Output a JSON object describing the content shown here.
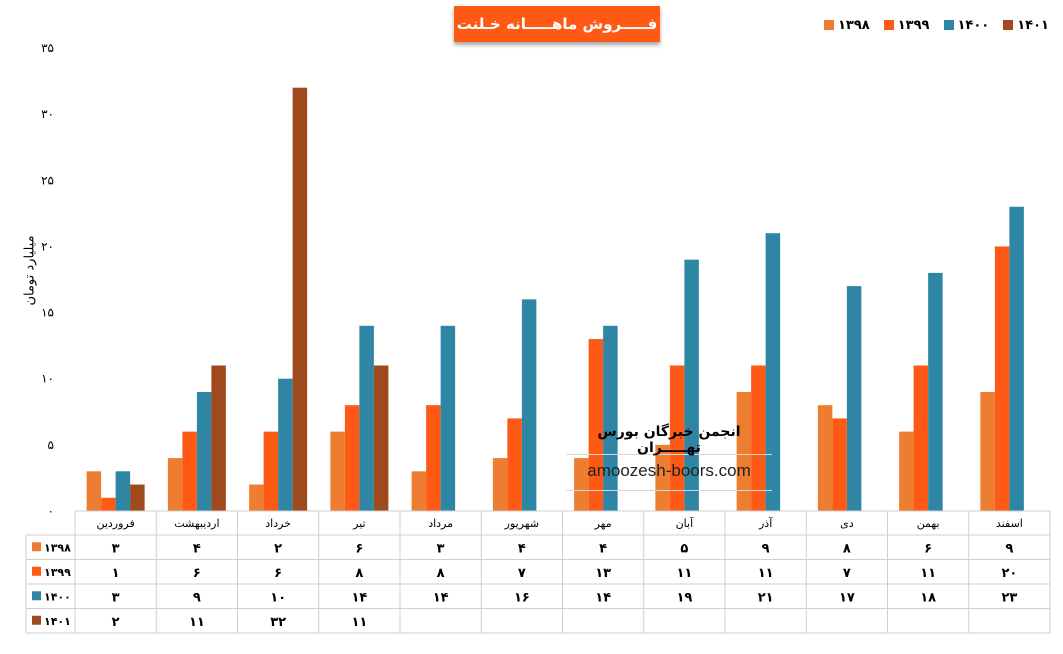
{
  "chart_data": {
    "type": "bar",
    "title": "فـــــروش ماهـــــانه خـلنت",
    "xlabel": "",
    "ylabel": "میلیارد تومان",
    "ylim": [
      0,
      35
    ],
    "yticks": [
      "۰",
      "۵",
      "۱۰",
      "۱۵",
      "۲۰",
      "۲۵",
      "۳۰",
      "۳۵"
    ],
    "ytick_values": [
      0,
      5,
      10,
      15,
      20,
      25,
      30,
      35
    ],
    "categories": [
      "فروردین",
      "اردیبهشت",
      "خرداد",
      "تیر",
      "مرداد",
      "شهریور",
      "مهر",
      "آبان",
      "آذر",
      "دی",
      "بهمن",
      "اسفند"
    ],
    "grid": false,
    "legend": "top-right",
    "series": [
      {
        "name": "۱۳۹۸",
        "color": "#ed7d31",
        "values": [
          3,
          4,
          2,
          6,
          3,
          4,
          4,
          5,
          9,
          8,
          6,
          9
        ],
        "labels": [
          "۳",
          "۴",
          "۲",
          "۶",
          "۳",
          "۴",
          "۴",
          "۵",
          "۹",
          "۸",
          "۶",
          "۹"
        ]
      },
      {
        "name": "۱۳۹۹",
        "color": "#fe5a15",
        "values": [
          1,
          6,
          6,
          8,
          8,
          7,
          13,
          11,
          11,
          7,
          11,
          20
        ],
        "labels": [
          "۱",
          "۶",
          "۶",
          "۸",
          "۸",
          "۷",
          "۱۳",
          "۱۱",
          "۱۱",
          "۷",
          "۱۱",
          "۲۰"
        ]
      },
      {
        "name": "۱۴۰۰",
        "color": "#2e86a4",
        "values": [
          3,
          9,
          10,
          14,
          14,
          16,
          14,
          19,
          21,
          17,
          18,
          23
        ],
        "labels": [
          "۳",
          "۹",
          "۱۰",
          "۱۴",
          "۱۴",
          "۱۶",
          "۱۴",
          "۱۹",
          "۲۱",
          "۱۷",
          "۱۸",
          "۲۳"
        ]
      },
      {
        "name": "۱۴۰۱",
        "color": "#9e4a1c",
        "values": [
          2,
          11,
          32,
          11,
          null,
          null,
          null,
          null,
          null,
          null,
          null,
          null
        ],
        "labels": [
          "۲",
          "۱۱",
          "۳۲",
          "۱۱",
          "",
          "",
          "",
          "",
          "",
          "",
          "",
          ""
        ]
      }
    ]
  },
  "watermark": {
    "title": "انجمن خبرگان بورس تهـــــران",
    "url": "amoozesh-boors.com"
  }
}
